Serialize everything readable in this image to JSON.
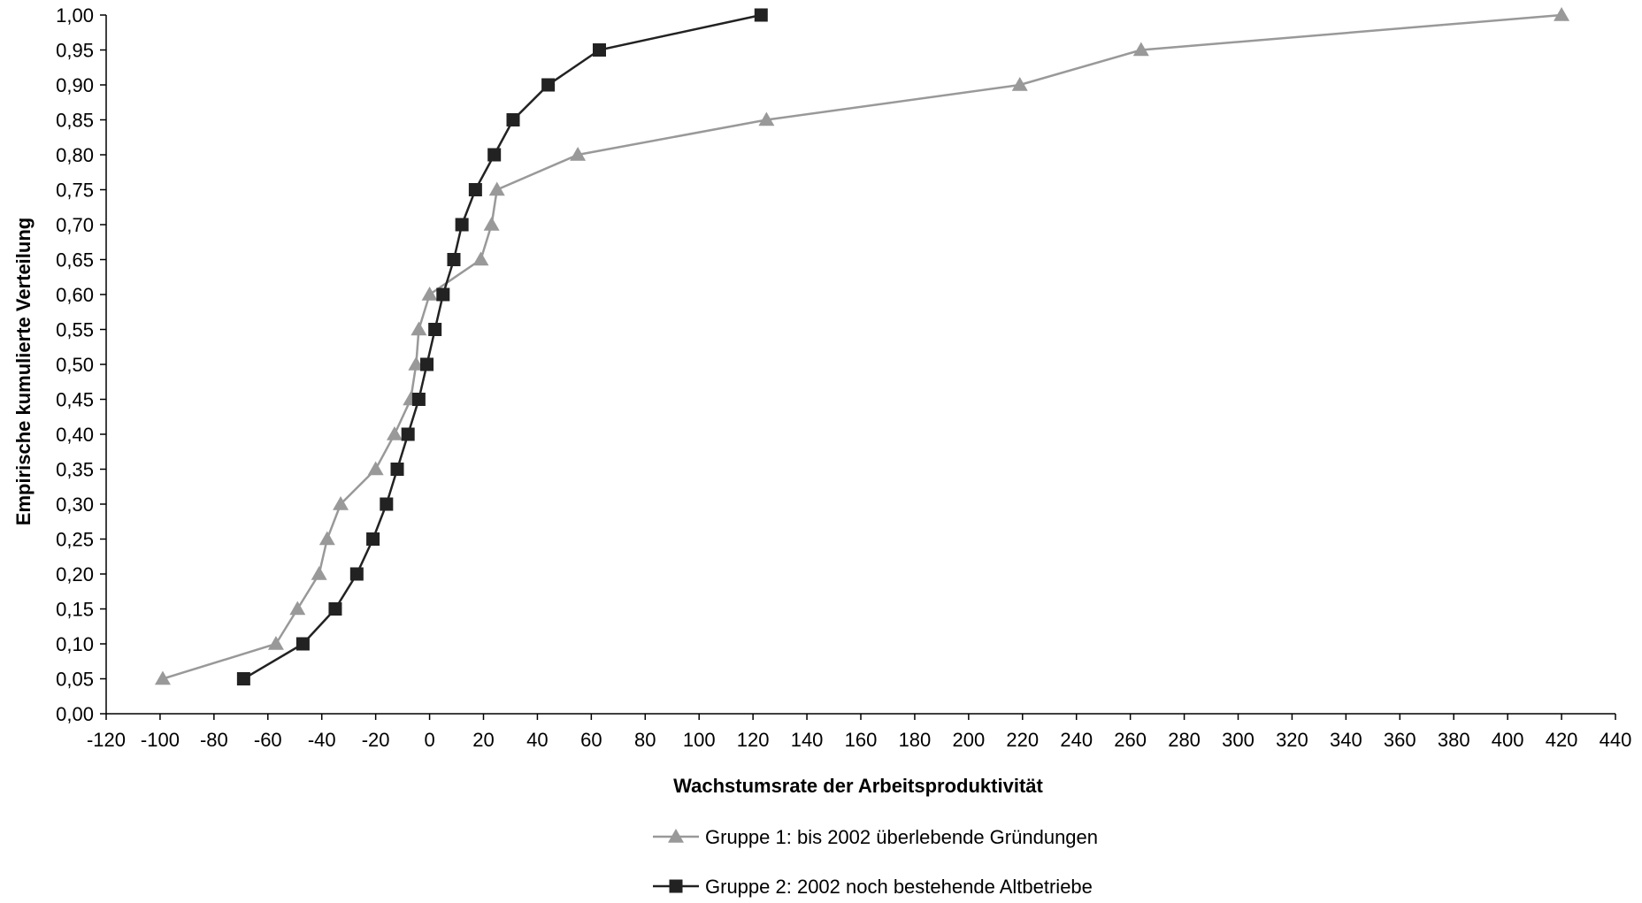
{
  "chart_data": {
    "type": "line",
    "title": "",
    "xlabel": "Wachstumsrate der Arbeitsproduktivität",
    "ylabel": "Empirische kumulierte Verteilung",
    "xlim": [
      -120,
      440
    ],
    "ylim": [
      0,
      1
    ],
    "x_ticks": [
      -120,
      -100,
      -80,
      -60,
      -40,
      -20,
      0,
      20,
      40,
      60,
      80,
      100,
      120,
      140,
      160,
      180,
      200,
      220,
      240,
      260,
      280,
      300,
      320,
      340,
      360,
      380,
      400,
      420,
      440
    ],
    "x_tick_labels": [
      "-120",
      "-100",
      "-80",
      "-60",
      "-40",
      "-20",
      "0",
      "20",
      "40",
      "60",
      "80",
      "100",
      "120",
      "140",
      "160",
      "180",
      "200",
      "220",
      "240",
      "260",
      "280",
      "300",
      "320",
      "340",
      "360",
      "380",
      "400",
      "420",
      "440"
    ],
    "y_ticks": [
      0,
      0.05,
      0.1,
      0.15,
      0.2,
      0.25,
      0.3,
      0.35,
      0.4,
      0.45,
      0.5,
      0.55,
      0.6,
      0.65,
      0.7,
      0.75,
      0.8,
      0.85,
      0.9,
      0.95,
      1.0
    ],
    "y_tick_labels": [
      "0,00",
      "0,05",
      "0,10",
      "0,15",
      "0,20",
      "0,25",
      "0,30",
      "0,35",
      "0,40",
      "0,45",
      "0,50",
      "0,55",
      "0,60",
      "0,65",
      "0,70",
      "0,75",
      "0,80",
      "0,85",
      "0,90",
      "0,95",
      "1,00"
    ],
    "grid": false,
    "legend_position": "bottom",
    "series": [
      {
        "name": "Gruppe 1: bis 2002 überlebende Gründungen",
        "color": "#999999",
        "marker": "triangle",
        "x": [
          -99,
          -57,
          -49,
          -41,
          -38,
          -33,
          -20,
          -13,
          -7,
          -5,
          -4,
          0,
          19,
          23,
          25,
          55,
          125,
          219,
          264,
          420
        ],
        "y": [
          0.05,
          0.1,
          0.15,
          0.2,
          0.25,
          0.3,
          0.35,
          0.4,
          0.45,
          0.5,
          0.55,
          0.6,
          0.65,
          0.7,
          0.75,
          0.8,
          0.85,
          0.9,
          0.95,
          1.0
        ]
      },
      {
        "name": "Gruppe 2: 2002 noch bestehende Altbetriebe",
        "color": "#222222",
        "marker": "square",
        "x": [
          -69,
          -47,
          -35,
          -27,
          -21,
          -16,
          -12,
          -8,
          -4,
          -1,
          2,
          5,
          9,
          12,
          17,
          24,
          31,
          44,
          63,
          123
        ],
        "y": [
          0.05,
          0.1,
          0.15,
          0.2,
          0.25,
          0.3,
          0.35,
          0.4,
          0.45,
          0.5,
          0.55,
          0.6,
          0.65,
          0.7,
          0.75,
          0.8,
          0.85,
          0.9,
          0.95,
          1.0
        ]
      }
    ]
  }
}
